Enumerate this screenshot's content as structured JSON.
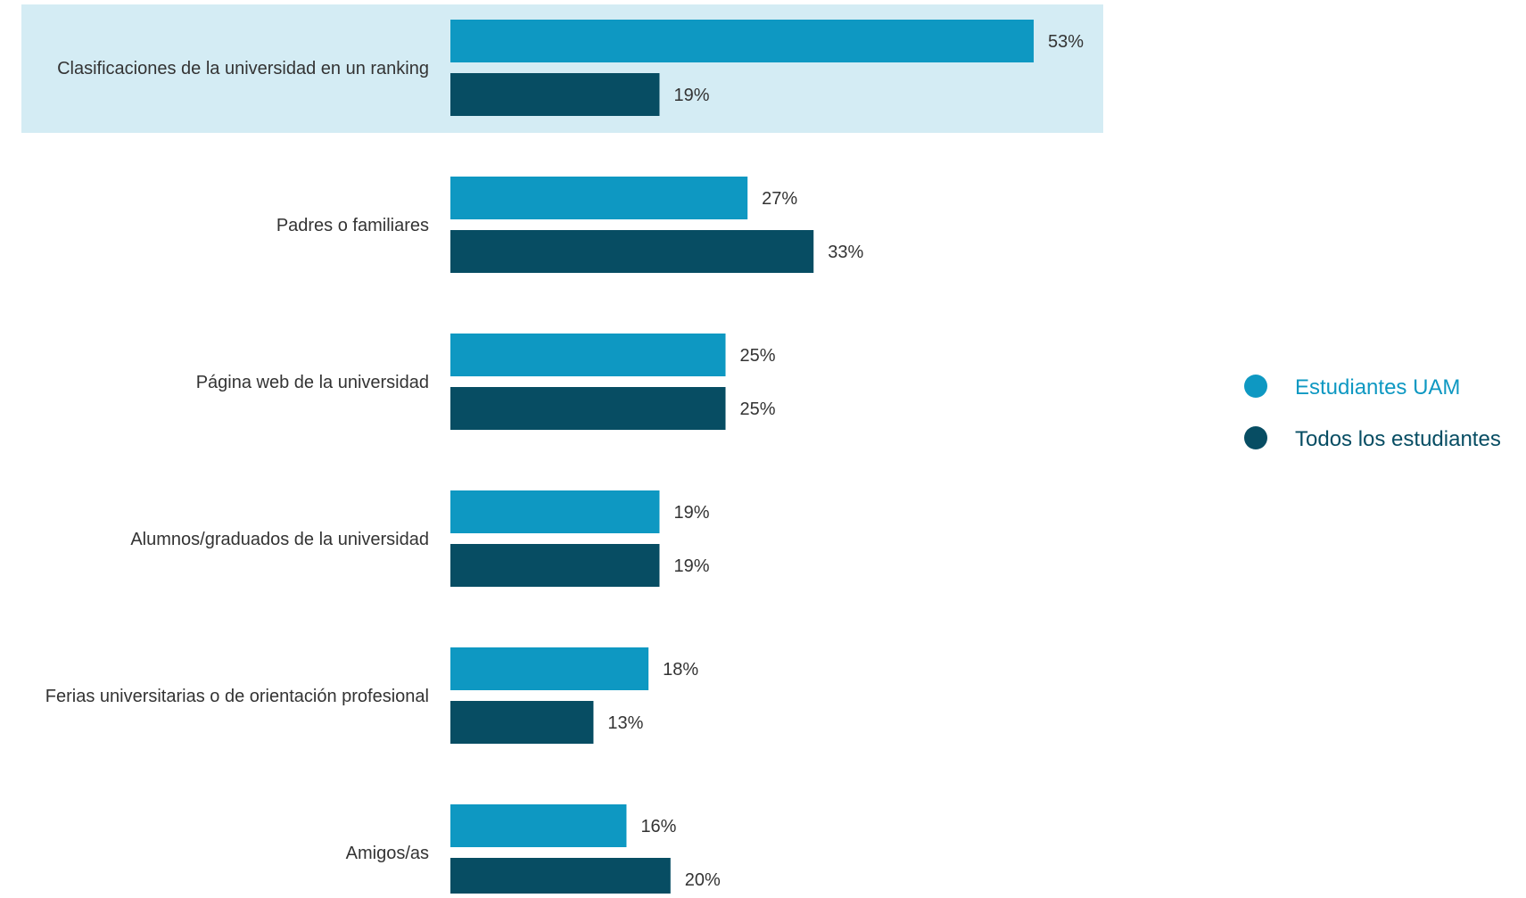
{
  "chart_data": {
    "type": "bar",
    "orientation": "horizontal",
    "categories": [
      "Clasificaciones de la universidad en un ranking",
      "Padres o familiares",
      "Página web de la universidad",
      "Alumnos/graduados de la universidad",
      "Ferias universitarias o de orientación profesional",
      "Amigos/as"
    ],
    "series": [
      {
        "name": "Estudiantes UAM",
        "color": "#0e98c2",
        "values": [
          53,
          27,
          25,
          19,
          18,
          16
        ],
        "labels": [
          "53%",
          "27%",
          "25%",
          "19%",
          "18%",
          "16%"
        ]
      },
      {
        "name": "Todos los estudiantes",
        "color": "#074d63",
        "values": [
          19,
          33,
          25,
          19,
          13,
          20
        ],
        "labels": [
          "19%",
          "33%",
          "25%",
          "19%",
          "13%",
          "20%"
        ]
      }
    ],
    "highlighted_category": "Clasificaciones de la universidad en un ranking",
    "highlight_color": "#d4ecf4",
    "value_unit": "%",
    "legend_position": "right",
    "grid": false
  }
}
